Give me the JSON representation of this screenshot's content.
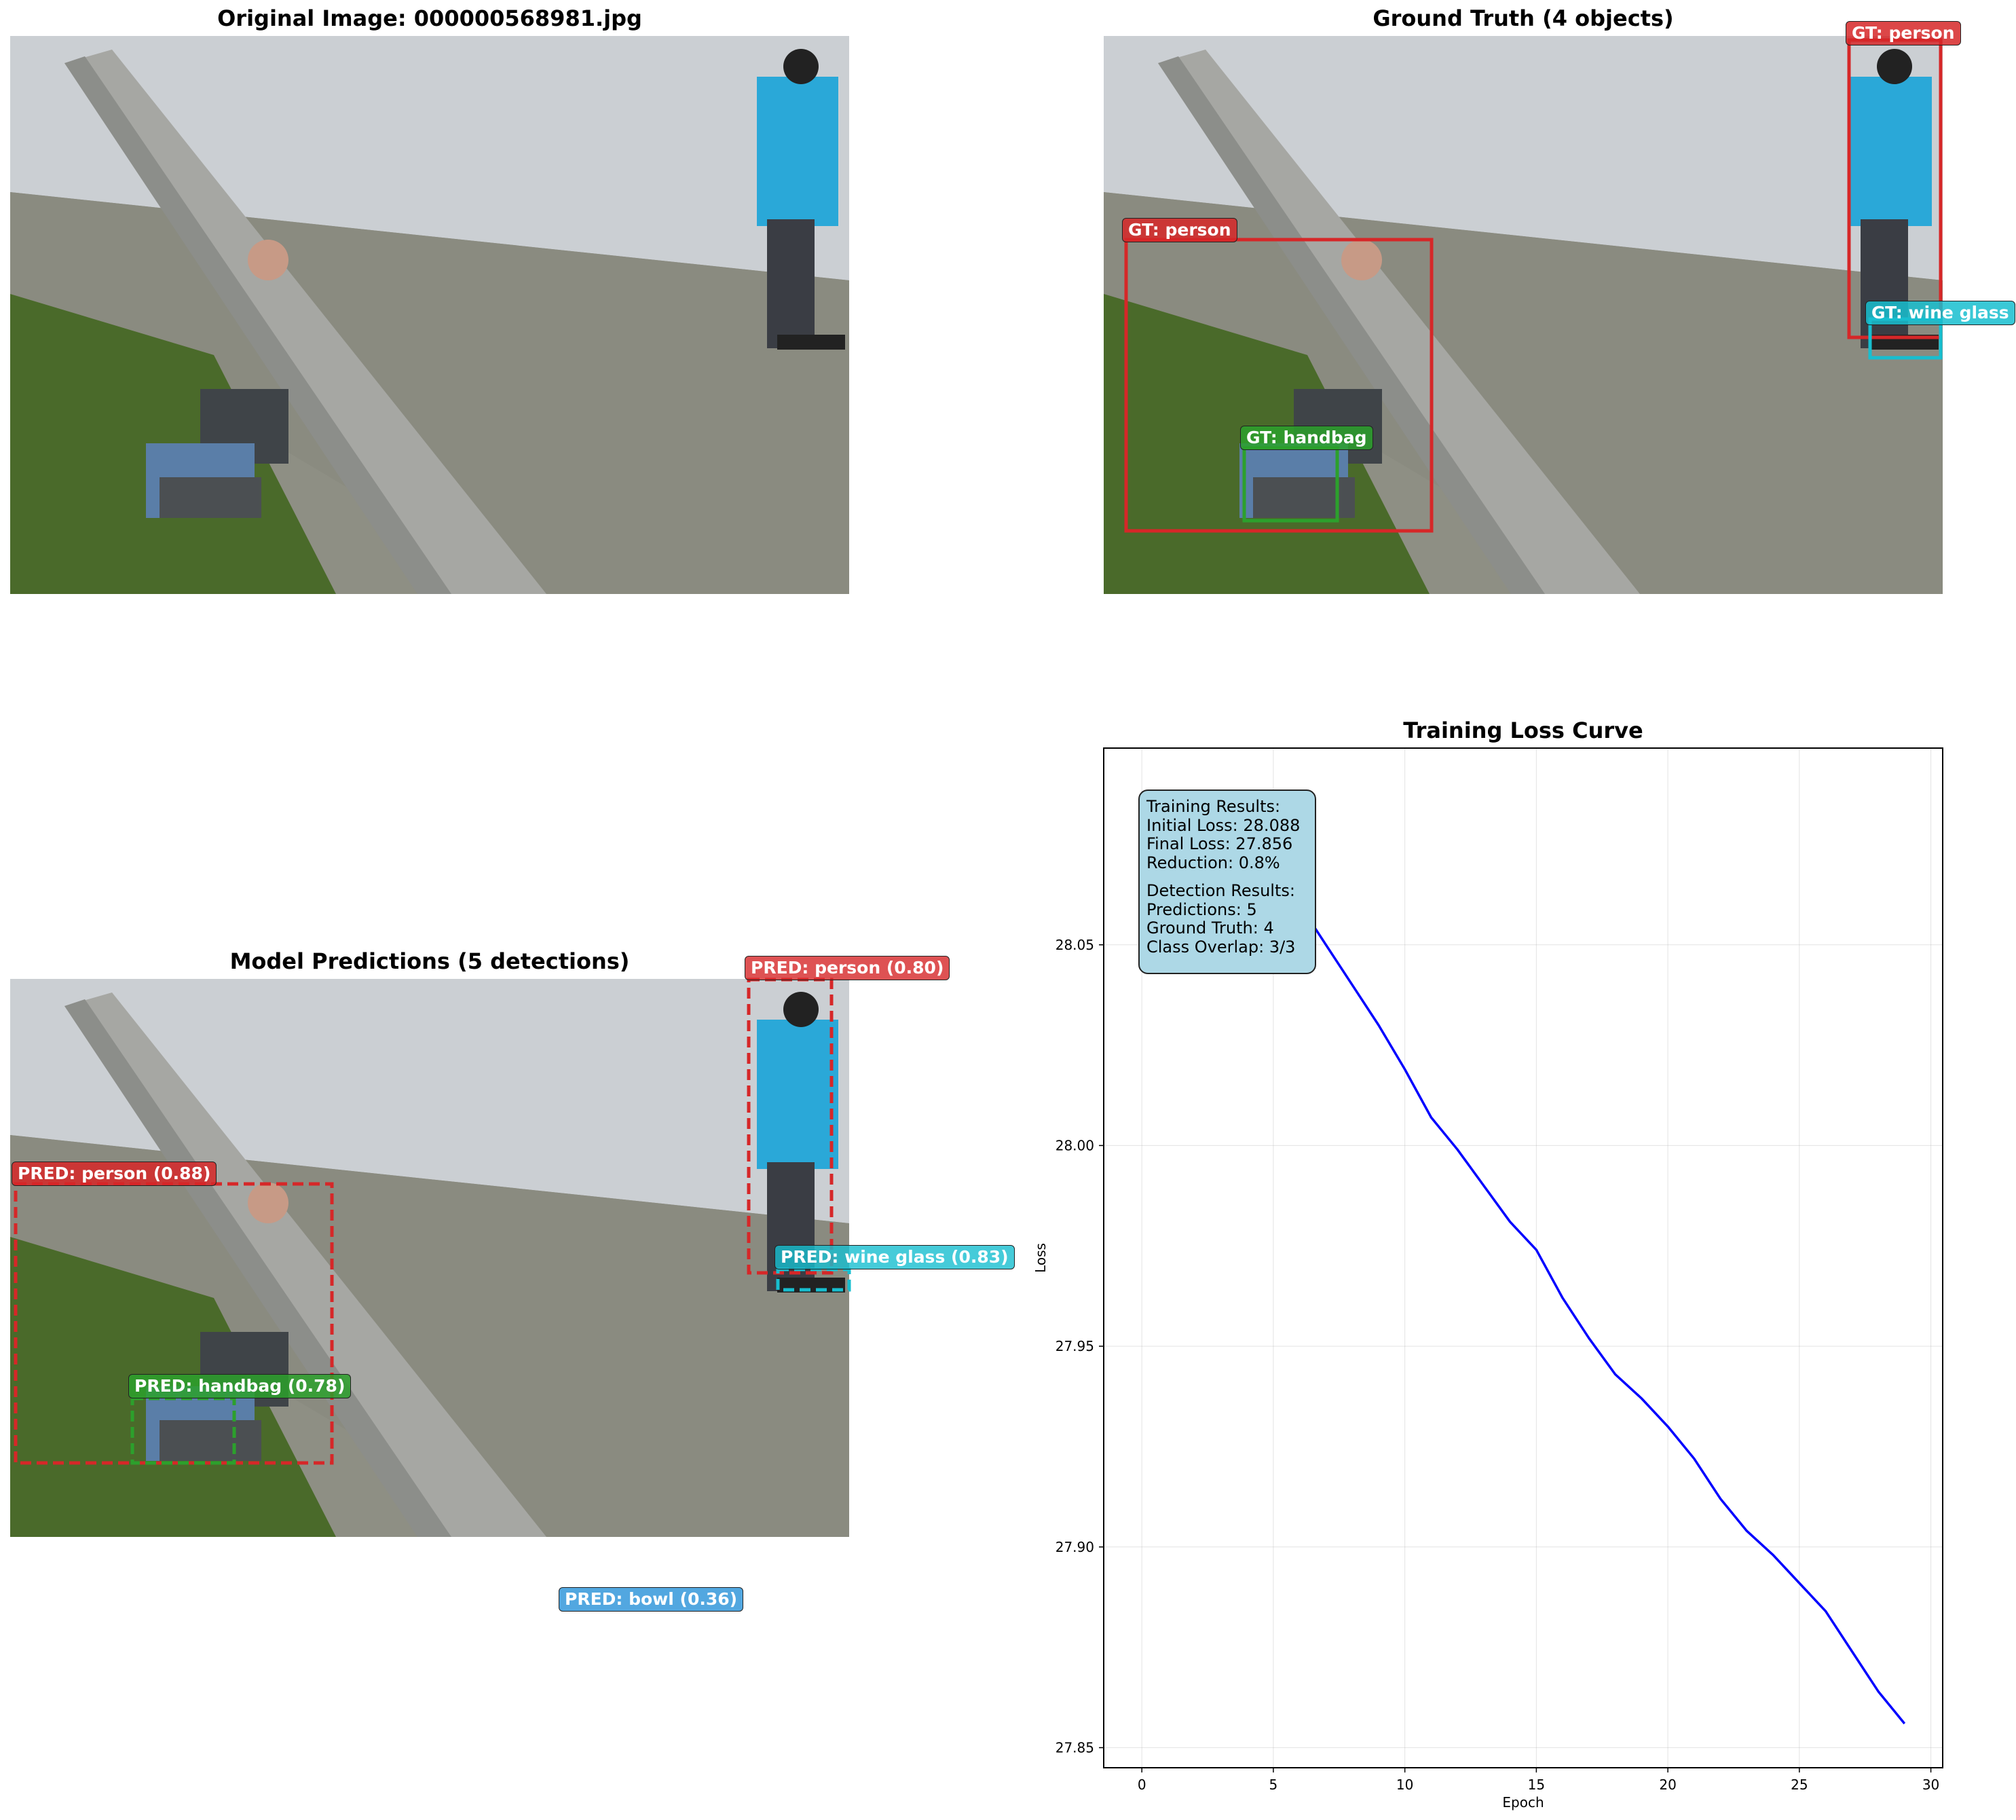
{
  "panels": {
    "original_title": "Original Image: 000000568981.jpg",
    "ground_truth_title": "Ground Truth (4 objects)",
    "predictions_title": "Model Predictions (5 detections)",
    "loss_title": "Training Loss Curve"
  },
  "ground_truth": [
    {
      "label": "GT: person",
      "color": "#d62728"
    },
    {
      "label": "GT: person",
      "color": "#d62728"
    },
    {
      "label": "GT: handbag",
      "color": "#2ca02c"
    },
    {
      "label": "GT: wine glass",
      "color": "#17becf"
    }
  ],
  "predictions": [
    {
      "label": "PRED: person (0.80)",
      "color": "#d62728"
    },
    {
      "label": "PRED: person (0.88)",
      "color": "#d62728"
    },
    {
      "label": "PRED: wine glass (0.83)",
      "color": "#17becf"
    },
    {
      "label": "PRED: handbag (0.78)",
      "color": "#2ca02c"
    },
    {
      "label": "PRED: bowl (0.36)",
      "color": "#3498db"
    }
  ],
  "info": {
    "training_header": "Training Results:",
    "initial_loss": "Initial Loss: 28.088",
    "final_loss": "Final Loss: 27.856",
    "reduction": "Reduction: 0.8%",
    "detection_header": "Detection Results:",
    "predictions": "Predictions: 5",
    "ground_truth": "Ground Truth: 4",
    "class_overlap": "Class Overlap: 3/3"
  },
  "chart_data": {
    "type": "line",
    "title": "Training Loss Curve",
    "xlabel": "Epoch",
    "ylabel": "Loss",
    "xlim": [
      -1.45,
      30.45
    ],
    "ylim": [
      27.845,
      28.099
    ],
    "xticks": [
      0,
      5,
      10,
      15,
      20,
      25,
      30
    ],
    "yticks": [
      27.85,
      27.9,
      27.95,
      28.0,
      28.05
    ],
    "grid": true,
    "series": [
      {
        "color": "#0000ff",
        "x": [
          0,
          1,
          2,
          3,
          4,
          5,
          6,
          7,
          8,
          9,
          10,
          11,
          12,
          13,
          14,
          15,
          16,
          17,
          18,
          19,
          20,
          21,
          22,
          23,
          24,
          25,
          26,
          27,
          28,
          29
        ],
        "values": [
          28.088,
          28.086,
          28.083,
          28.079,
          28.074,
          28.067,
          28.06,
          28.05,
          28.04,
          28.03,
          28.019,
          28.007,
          27.999,
          27.99,
          27.981,
          27.974,
          27.962,
          27.952,
          27.943,
          27.937,
          27.93,
          27.922,
          27.912,
          27.904,
          27.898,
          27.891,
          27.884,
          27.874,
          27.864,
          27.856
        ]
      }
    ]
  }
}
